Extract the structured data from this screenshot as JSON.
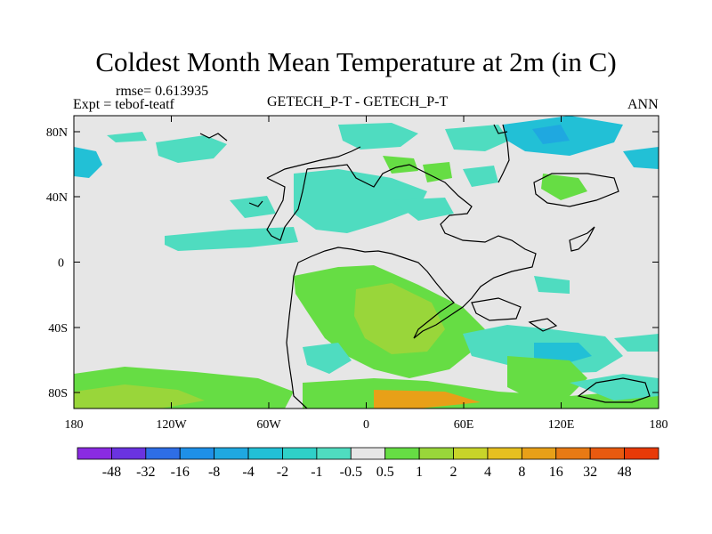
{
  "title": "Coldest Month Mean Temperature at 2m (in C)",
  "rmse": "rmse= 0.613935",
  "expt": "Expt = tebof-teatf",
  "center_label": "GETECH_P-T - GETECH_P-T",
  "right_label": "ANN",
  "lon_ticks": [
    "180",
    "120W",
    "60W",
    "0",
    "60E",
    "120E",
    "180"
  ],
  "lat_ticks": [
    "80N",
    "40N",
    "0",
    "40S",
    "80S"
  ],
  "colorbar": {
    "labels": [
      "-48",
      "-32",
      "-16",
      "-8",
      "-4",
      "-2",
      "-1",
      "-0.5",
      "0.5",
      "1",
      "2",
      "4",
      "8",
      "16",
      "32",
      "48"
    ],
    "colors": [
      "#8a2be2",
      "#6a33e0",
      "#2e6ee6",
      "#1e90e8",
      "#1fa8e0",
      "#22c0d6",
      "#2fd0c8",
      "#4fdcc0",
      "#e6e6e6",
      "#66dd44",
      "#99d63a",
      "#c8d42a",
      "#e6c020",
      "#e8a018",
      "#e87a14",
      "#e85a10",
      "#e83a08"
    ]
  },
  "map_colors": {
    "background": "#e6e6e6",
    "cyan": "#4fdcc0",
    "teal": "#22c0d6",
    "green": "#66dd44",
    "yellowgreen": "#99d63a",
    "orange": "#e8a018"
  }
}
